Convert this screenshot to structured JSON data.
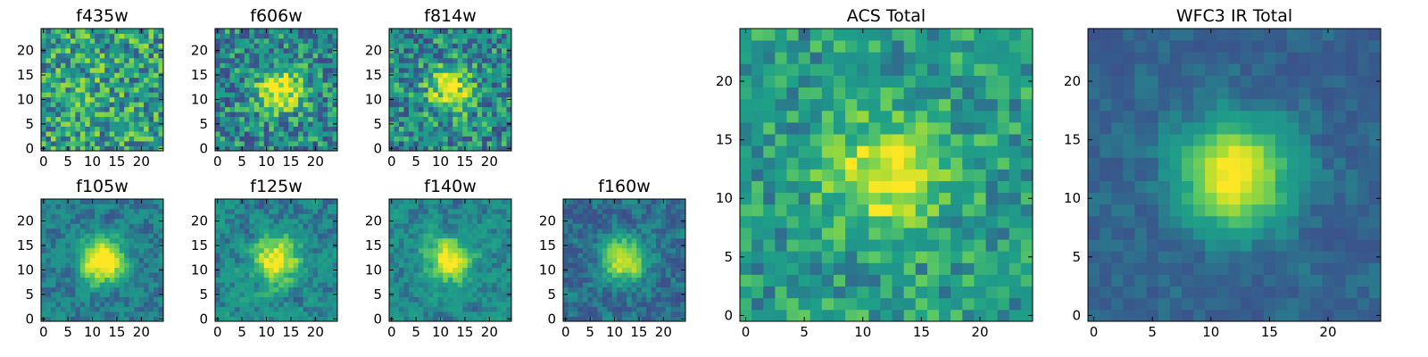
{
  "chart_data": [
    {
      "type": "heatmap",
      "title": "f435w",
      "grid": 25,
      "xticks": [
        0,
        5,
        10,
        15,
        20
      ],
      "yticks": [
        0,
        5,
        10,
        15,
        20
      ],
      "xlim": [
        0,
        24
      ],
      "ylim": [
        0,
        24
      ],
      "peak": [
        12,
        12
      ],
      "signal": 0.05,
      "noise": 0.55,
      "base": 0.6,
      "colormap": "viridis"
    },
    {
      "type": "heatmap",
      "title": "f606w",
      "grid": 25,
      "xticks": [
        0,
        5,
        10,
        15,
        20
      ],
      "yticks": [
        0,
        5,
        10,
        15,
        20
      ],
      "xlim": [
        0,
        24
      ],
      "ylim": [
        0,
        24
      ],
      "peak": [
        13,
        12
      ],
      "signal": 0.45,
      "noise": 0.5,
      "base": 0.5,
      "colormap": "viridis"
    },
    {
      "type": "heatmap",
      "title": "f814w",
      "grid": 25,
      "xticks": [
        0,
        5,
        10,
        15,
        20
      ],
      "yticks": [
        0,
        5,
        10,
        15,
        20
      ],
      "xlim": [
        0,
        24
      ],
      "ylim": [
        0,
        24
      ],
      "peak": [
        12,
        12
      ],
      "signal": 0.4,
      "noise": 0.5,
      "base": 0.5,
      "colormap": "viridis"
    },
    {
      "type": "heatmap",
      "title": "f105w",
      "grid": 25,
      "xticks": [
        0,
        5,
        10,
        15,
        20
      ],
      "yticks": [
        0,
        5,
        10,
        15,
        20
      ],
      "xlim": [
        0,
        24
      ],
      "ylim": [
        0,
        24
      ],
      "peak": [
        12,
        12
      ],
      "signal": 0.55,
      "noise": 0.35,
      "base": 0.45,
      "colormap": "viridis"
    },
    {
      "type": "heatmap",
      "title": "f125w",
      "grid": 25,
      "xticks": [
        0,
        5,
        10,
        15,
        20
      ],
      "yticks": [
        0,
        5,
        10,
        15,
        20
      ],
      "xlim": [
        0,
        24
      ],
      "ylim": [
        0,
        24
      ],
      "peak": [
        12,
        12
      ],
      "signal": 0.45,
      "noise": 0.45,
      "base": 0.5,
      "colormap": "viridis"
    },
    {
      "type": "heatmap",
      "title": "f140w",
      "grid": 25,
      "xticks": [
        0,
        5,
        10,
        15,
        20
      ],
      "yticks": [
        0,
        5,
        10,
        15,
        20
      ],
      "xlim": [
        0,
        24
      ],
      "ylim": [
        0,
        24
      ],
      "peak": [
        12,
        12
      ],
      "signal": 0.45,
      "noise": 0.4,
      "base": 0.5,
      "colormap": "viridis"
    },
    {
      "type": "heatmap",
      "title": "f160w",
      "grid": 25,
      "xticks": [
        0,
        5,
        10,
        15,
        20
      ],
      "yticks": [
        0,
        5,
        10,
        15,
        20
      ],
      "xlim": [
        0,
        24
      ],
      "ylim": [
        0,
        24
      ],
      "peak": [
        12,
        12
      ],
      "signal": 0.5,
      "noise": 0.35,
      "base": 0.4,
      "colormap": "viridis"
    },
    {
      "type": "heatmap",
      "title": "ACS Total",
      "grid": 25,
      "xticks": [
        0,
        5,
        10,
        15,
        20
      ],
      "yticks": [
        0,
        5,
        10,
        15,
        20
      ],
      "xlim": [
        0,
        24
      ],
      "ylim": [
        0,
        24
      ],
      "peak": [
        12,
        12
      ],
      "signal": 0.35,
      "noise": 0.35,
      "base": 0.58,
      "colormap": "viridis"
    },
    {
      "type": "heatmap",
      "title": "WFC3 IR Total",
      "grid": 25,
      "xticks": [
        0,
        5,
        10,
        15,
        20
      ],
      "yticks": [
        0,
        5,
        10,
        15,
        20
      ],
      "xlim": [
        0,
        24
      ],
      "ylim": [
        0,
        24
      ],
      "peak": [
        12,
        12
      ],
      "signal": 0.55,
      "noise": 0.2,
      "base": 0.38,
      "colormap": "viridis"
    }
  ]
}
